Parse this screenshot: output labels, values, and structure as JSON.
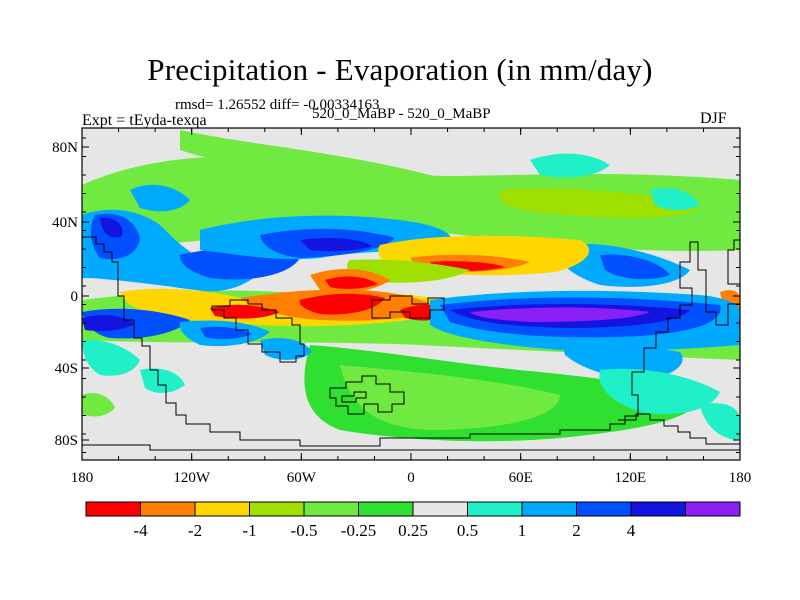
{
  "title": "Precipitation - Evaporation (in mm/day)",
  "stats_line": "rmsd= 1.26552 diff= -0.00334163",
  "experiment": "Expt = tEyda-texqa",
  "runs": "520_0_MaBP - 520_0_MaBP",
  "season": "DJF",
  "lat_labels": [
    "80N",
    "40N",
    "0",
    "40S",
    "80S"
  ],
  "lon_labels": [
    "180",
    "120W",
    "60W",
    "0",
    "60E",
    "120E",
    "180"
  ],
  "colorbar": {
    "labels": [
      "-4",
      "-2",
      "-1",
      "-0.5",
      "-0.25",
      "0.25",
      "0.5",
      "1",
      "2",
      "4"
    ],
    "colors": [
      "#ff0000",
      "#ff7f00",
      "#ffd700",
      "#a0e000",
      "#70ea40",
      "#30e030",
      "#e6e6e6",
      "#20f0c8",
      "#00aaff",
      "#0050ff",
      "#1414e0",
      "#8a20f5"
    ]
  },
  "map_fields": {
    "background": "#e6e6e6",
    "coastline": "#000000"
  }
}
